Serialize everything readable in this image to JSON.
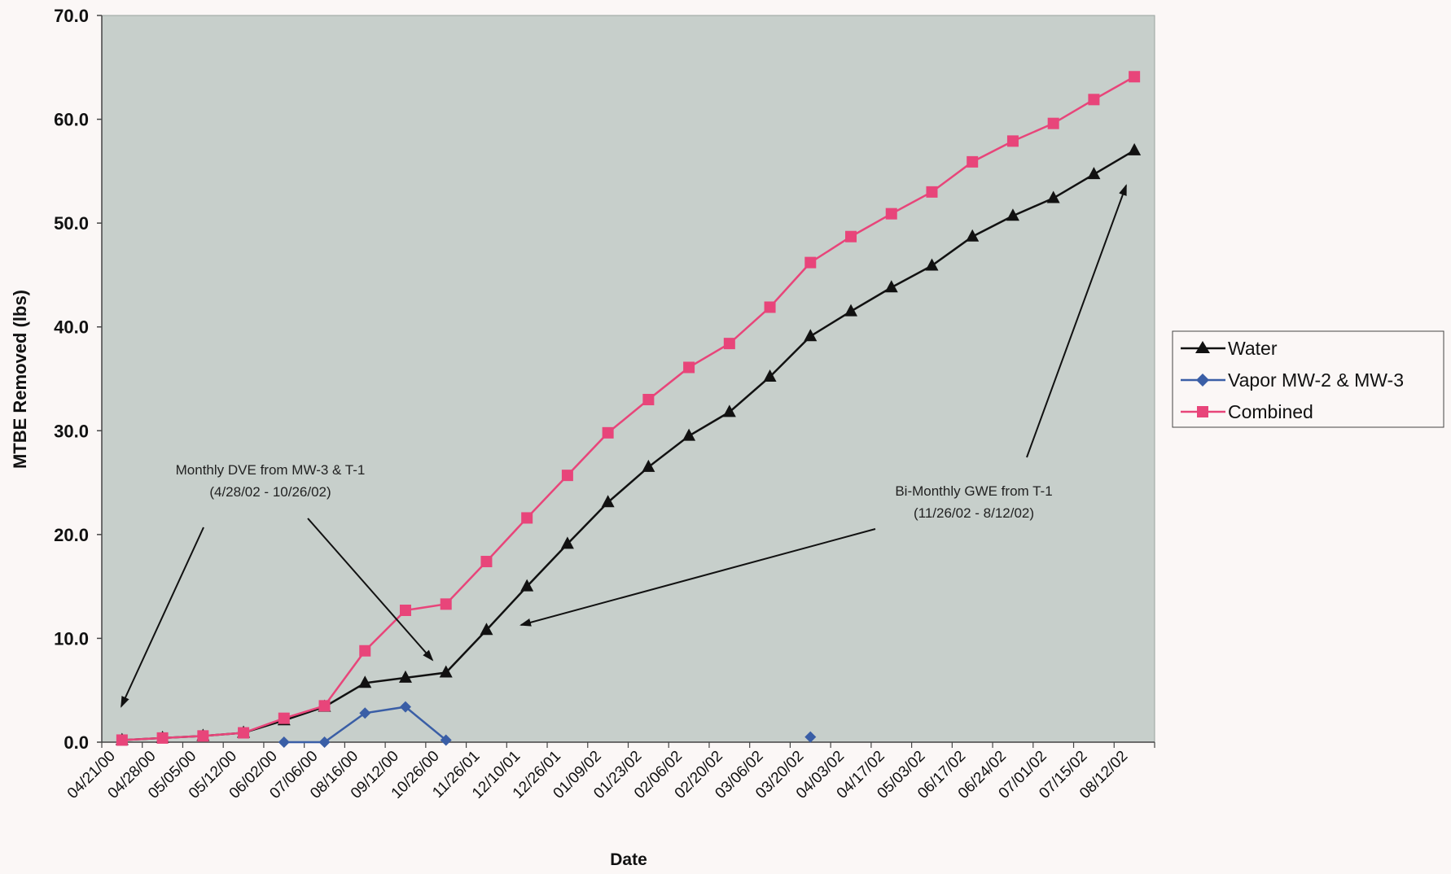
{
  "chart_data": {
    "type": "line",
    "title": "",
    "xlabel": "Date",
    "ylabel": "MTBE Removed (lbs)",
    "ylim": [
      0,
      70
    ],
    "yticks": [
      "0.0",
      "10.0",
      "20.0",
      "30.0",
      "40.0",
      "50.0",
      "60.0",
      "70.0"
    ],
    "grid": false,
    "legend_position": "right",
    "categories": [
      "04/21/00",
      "04/28/00",
      "05/05/00",
      "05/12/00",
      "06/02/00",
      "07/06/00",
      "08/16/00",
      "09/12/00",
      "10/26/00",
      "11/26/01",
      "12/10/01",
      "12/26/01",
      "01/09/02",
      "01/23/02",
      "02/06/02",
      "02/20/02",
      "03/06/02",
      "03/20/02",
      "04/03/02",
      "04/17/02",
      "05/03/02",
      "06/17/02",
      "06/24/02",
      "07/01/02",
      "07/15/02",
      "08/12/02"
    ],
    "series": [
      {
        "name": "Water",
        "color": "#111111",
        "marker": "triangle",
        "x_offset": 0.5,
        "values": [
          0.2,
          0.4,
          0.6,
          0.9,
          2.1,
          3.4,
          5.7,
          6.2,
          6.7,
          10.8,
          15.0,
          19.1,
          23.1,
          26.5,
          29.5,
          31.8,
          35.2,
          39.1,
          41.5,
          43.8,
          45.9,
          48.7,
          50.7,
          52.4,
          54.7,
          57.0
        ]
      },
      {
        "name": "Vapor MW-2 & MW-3",
        "color": "#3a5ea6",
        "marker": "diamond",
        "x_offset": 0.5,
        "values": [
          null,
          null,
          null,
          null,
          0.0,
          0.0,
          2.8,
          3.4,
          0.2,
          null,
          null,
          null,
          null,
          null,
          null,
          null,
          null,
          0.5,
          null,
          null,
          null,
          null,
          null,
          null,
          null,
          null
        ]
      },
      {
        "name": "Combined",
        "color": "#e8457a",
        "marker": "square",
        "x_offset": 0.5,
        "values": [
          0.2,
          0.4,
          0.6,
          0.9,
          2.3,
          3.5,
          8.8,
          12.7,
          13.3,
          17.4,
          21.6,
          25.7,
          29.8,
          33.0,
          36.1,
          38.4,
          41.9,
          46.2,
          48.7,
          50.9,
          53.0,
          55.9,
          57.9,
          59.6,
          61.9,
          64.1
        ]
      }
    ],
    "annotations": [
      {
        "lines": [
          "Monthly DVE from MW-3 & T-1",
          "(4/28/02 - 10/26/02)"
        ]
      },
      {
        "lines": [
          "Bi-Monthly GWE from T-1",
          "(11/26/02 - 8/12/02)"
        ]
      }
    ]
  }
}
